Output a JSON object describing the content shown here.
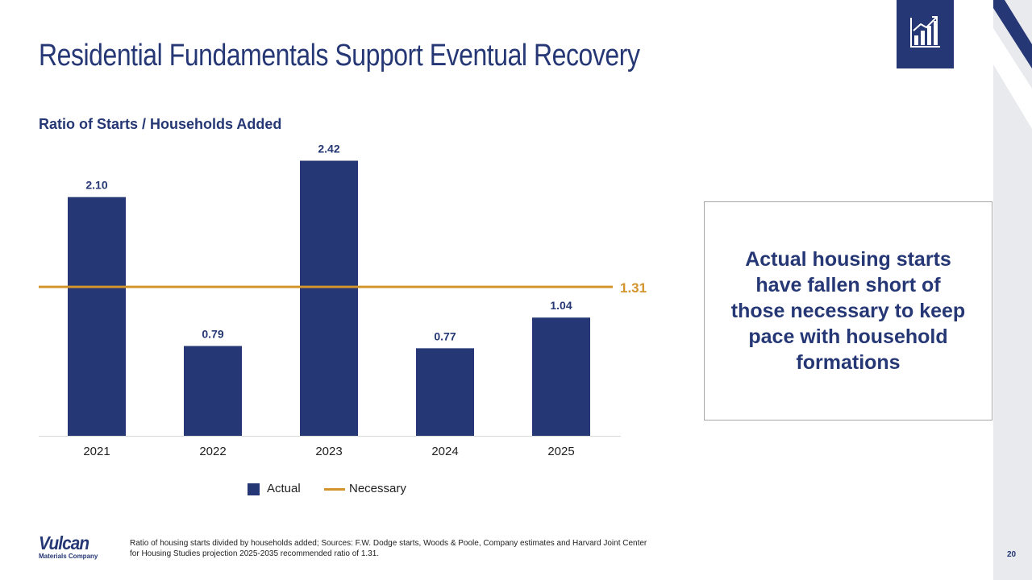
{
  "slide": {
    "title": "Residential Fundamentals Support Eventual Recovery",
    "page_number": "20"
  },
  "callout": {
    "text": "Actual housing starts have fallen short of those necessary to keep pace with household formations"
  },
  "footer": {
    "logo_main": "Vulcan",
    "logo_sub": "Materials Company",
    "footnote": "Ratio of housing starts divided by households added; Sources: F.W. Dodge starts, Woods & Poole, Company estimates and Harvard Joint Center for Housing Studies projection 2025-2035 recommended ratio of 1.31."
  },
  "icons": {
    "header_icon": "bar-chart-icon"
  },
  "colors": {
    "brand": "#253774",
    "necessary_line": "#d4942c",
    "strip": "#e9eaee"
  },
  "chart_data": {
    "type": "bar",
    "title": "Ratio of Starts / Households Added",
    "categories": [
      "2021",
      "2022",
      "2023",
      "2024",
      "2025"
    ],
    "series": [
      {
        "name": "Actual",
        "values": [
          2.1,
          0.79,
          2.42,
          0.77,
          1.04
        ]
      }
    ],
    "data_labels": [
      "2.10",
      "0.79",
      "2.42",
      "0.77",
      "1.04"
    ],
    "reference_line": {
      "name": "Necessary",
      "value": 1.31,
      "label": "1.31"
    },
    "legend": [
      "Actual",
      "Necessary"
    ],
    "legend_position": "bottom",
    "ylim": [
      0,
      2.7
    ],
    "grid": false,
    "xlabel": "",
    "ylabel": ""
  }
}
